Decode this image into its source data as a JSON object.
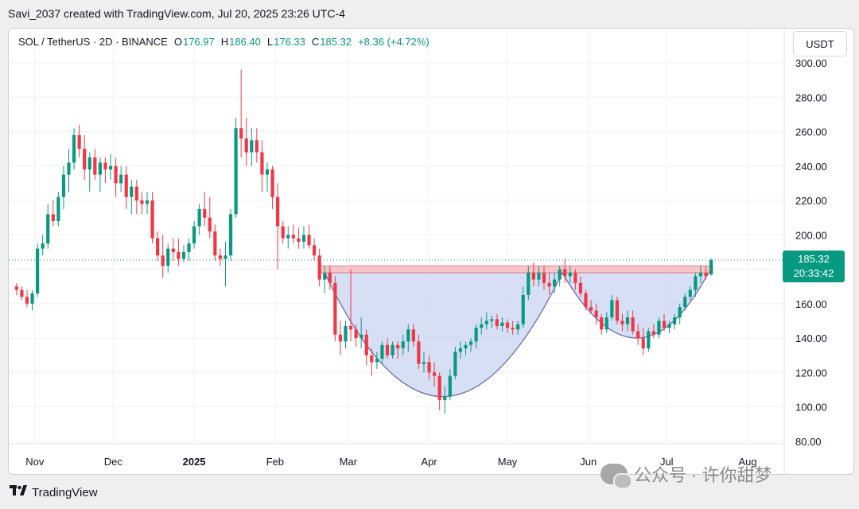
{
  "caption": "Savi_2037 created with TradingView.com, Jul 20, 2025 23:26 UTC-4",
  "legend": {
    "symbol": "SOL / TetherUS · 2D · BINANCE",
    "o_label": "O",
    "o_value": "176.97",
    "h_label": "H",
    "h_value": "186.40",
    "l_label": "L",
    "l_value": "176.33",
    "c_label": "C",
    "c_value": "185.32",
    "change": "+8.36 (+4.72%)"
  },
  "unit_label": "USDT",
  "last_price": {
    "value": "185.32",
    "countdown": "20:33:42"
  },
  "footer_logo": "TradingView",
  "watermark": "公众号 · 许你甜梦",
  "colors": {
    "up": "#089981",
    "down": "#f23645",
    "resistance_fill": "#f7c5c8",
    "cup_fill": "#c9d4f0",
    "cup_stroke": "#6f6aa8"
  },
  "chart_data": {
    "type": "candlestick",
    "timeframe": "2D",
    "y_ticks": [
      "300.00",
      "280.00",
      "260.00",
      "240.00",
      "220.00",
      "200.00",
      "180.00",
      "160.00",
      "140.00",
      "120.00",
      "100.00",
      "80.00"
    ],
    "ylim": [
      75,
      305
    ],
    "x_labels": [
      {
        "label": "Nov",
        "date": "2024-11-01"
      },
      {
        "label": "Dec",
        "date": "2024-12-01"
      },
      {
        "label": "2025",
        "date": "2025-01-01"
      },
      {
        "label": "Feb",
        "date": "2025-02-01"
      },
      {
        "label": "Mar",
        "date": "2025-03-01"
      },
      {
        "label": "Apr",
        "date": "2025-04-01"
      },
      {
        "label": "May",
        "date": "2025-05-01"
      },
      {
        "label": "Jun",
        "date": "2025-06-01"
      },
      {
        "label": "Jul",
        "date": "2025-07-01"
      },
      {
        "label": "Aug",
        "date": "2025-08-01"
      }
    ],
    "candles": [
      [
        "2024-10-25",
        170,
        172,
        165,
        168
      ],
      [
        "2024-10-27",
        168,
        170,
        162,
        164
      ],
      [
        "2024-10-29",
        164,
        168,
        158,
        160
      ],
      [
        "2024-10-31",
        160,
        168,
        156,
        166
      ],
      [
        "2024-11-02",
        166,
        195,
        164,
        192
      ],
      [
        "2024-11-04",
        192,
        200,
        188,
        195
      ],
      [
        "2024-11-06",
        195,
        218,
        192,
        212
      ],
      [
        "2024-11-08",
        212,
        220,
        205,
        208
      ],
      [
        "2024-11-10",
        208,
        225,
        205,
        222
      ],
      [
        "2024-11-12",
        222,
        240,
        215,
        235
      ],
      [
        "2024-11-14",
        235,
        250,
        225,
        242
      ],
      [
        "2024-11-16",
        242,
        262,
        238,
        258
      ],
      [
        "2024-11-18",
        258,
        264,
        245,
        250
      ],
      [
        "2024-11-20",
        250,
        258,
        232,
        238
      ],
      [
        "2024-11-22",
        238,
        248,
        225,
        245
      ],
      [
        "2024-11-24",
        245,
        250,
        232,
        235
      ],
      [
        "2024-11-26",
        235,
        245,
        225,
        242
      ],
      [
        "2024-11-28",
        242,
        245,
        230,
        238
      ],
      [
        "2024-11-30",
        238,
        247,
        232,
        240
      ],
      [
        "2024-12-02",
        240,
        245,
        222,
        230
      ],
      [
        "2024-12-04",
        230,
        240,
        225,
        235
      ],
      [
        "2024-12-06",
        235,
        240,
        215,
        222
      ],
      [
        "2024-12-08",
        222,
        232,
        212,
        228
      ],
      [
        "2024-12-10",
        228,
        232,
        212,
        220
      ],
      [
        "2024-12-12",
        220,
        225,
        212,
        218
      ],
      [
        "2024-12-14",
        218,
        225,
        212,
        220
      ],
      [
        "2024-12-16",
        220,
        225,
        195,
        198
      ],
      [
        "2024-12-18",
        198,
        202,
        185,
        188
      ],
      [
        "2024-12-20",
        188,
        200,
        175,
        182
      ],
      [
        "2024-12-22",
        182,
        195,
        178,
        192
      ],
      [
        "2024-12-24",
        192,
        198,
        185,
        190
      ],
      [
        "2024-12-26",
        190,
        198,
        182,
        186
      ],
      [
        "2024-12-28",
        186,
        194,
        184,
        190
      ],
      [
        "2024-12-30",
        190,
        198,
        185,
        195
      ],
      [
        "2025-01-01",
        195,
        208,
        192,
        205
      ],
      [
        "2025-01-03",
        205,
        218,
        200,
        215
      ],
      [
        "2025-01-05",
        215,
        225,
        205,
        210
      ],
      [
        "2025-01-07",
        210,
        222,
        198,
        202
      ],
      [
        "2025-01-09",
        202,
        206,
        185,
        188
      ],
      [
        "2025-01-11",
        188,
        192,
        182,
        186
      ],
      [
        "2025-01-13",
        186,
        196,
        170,
        188
      ],
      [
        "2025-01-15",
        188,
        215,
        185,
        212
      ],
      [
        "2025-01-17",
        212,
        268,
        210,
        262
      ],
      [
        "2025-01-19",
        262,
        296,
        245,
        256
      ],
      [
        "2025-01-21",
        256,
        268,
        240,
        248
      ],
      [
        "2025-01-23",
        248,
        262,
        240,
        255
      ],
      [
        "2025-01-25",
        255,
        262,
        242,
        248
      ],
      [
        "2025-01-27",
        248,
        255,
        225,
        235
      ],
      [
        "2025-01-29",
        235,
        242,
        225,
        238
      ],
      [
        "2025-01-31",
        238,
        240,
        215,
        222
      ],
      [
        "2025-02-02",
        222,
        230,
        180,
        205
      ],
      [
        "2025-02-04",
        205,
        208,
        195,
        198
      ],
      [
        "2025-02-06",
        198,
        205,
        192,
        200
      ],
      [
        "2025-02-08",
        200,
        206,
        195,
        198
      ],
      [
        "2025-02-10",
        198,
        204,
        192,
        196
      ],
      [
        "2025-02-12",
        196,
        205,
        192,
        200
      ],
      [
        "2025-02-14",
        200,
        206,
        192,
        194
      ],
      [
        "2025-02-16",
        194,
        198,
        185,
        188
      ],
      [
        "2025-02-18",
        188,
        192,
        170,
        174
      ],
      [
        "2025-02-20",
        174,
        182,
        166,
        178
      ],
      [
        "2025-02-22",
        178,
        182,
        168,
        172
      ],
      [
        "2025-02-24",
        172,
        176,
        138,
        142
      ],
      [
        "2025-02-26",
        142,
        150,
        130,
        138
      ],
      [
        "2025-02-28",
        138,
        150,
        134,
        147
      ],
      [
        "2025-03-02",
        147,
        180,
        138,
        145
      ],
      [
        "2025-03-04",
        145,
        148,
        135,
        140
      ],
      [
        "2025-03-06",
        140,
        152,
        134,
        142
      ],
      [
        "2025-03-08",
        142,
        145,
        124,
        130
      ],
      [
        "2025-03-10",
        130,
        134,
        118,
        126
      ],
      [
        "2025-03-12",
        126,
        132,
        122,
        128
      ],
      [
        "2025-03-14",
        128,
        138,
        125,
        136
      ],
      [
        "2025-03-16",
        136,
        140,
        128,
        130
      ],
      [
        "2025-03-18",
        130,
        138,
        128,
        136
      ],
      [
        "2025-03-20",
        136,
        138,
        128,
        134
      ],
      [
        "2025-03-22",
        134,
        142,
        130,
        138
      ],
      [
        "2025-03-24",
        138,
        148,
        132,
        145
      ],
      [
        "2025-03-26",
        145,
        148,
        135,
        138
      ],
      [
        "2025-03-28",
        138,
        142,
        122,
        125
      ],
      [
        "2025-03-30",
        125,
        132,
        120,
        126
      ],
      [
        "2025-04-01",
        126,
        130,
        116,
        120
      ],
      [
        "2025-04-03",
        120,
        126,
        112,
        118
      ],
      [
        "2025-04-05",
        118,
        120,
        98,
        104
      ],
      [
        "2025-04-07",
        104,
        112,
        96,
        106
      ],
      [
        "2025-04-09",
        106,
        122,
        104,
        118
      ],
      [
        "2025-04-11",
        118,
        135,
        116,
        132
      ],
      [
        "2025-04-13",
        132,
        138,
        128,
        134
      ],
      [
        "2025-04-15",
        134,
        138,
        130,
        136
      ],
      [
        "2025-04-17",
        136,
        140,
        132,
        138
      ],
      [
        "2025-04-19",
        138,
        148,
        134,
        146
      ],
      [
        "2025-04-21",
        146,
        152,
        142,
        148
      ],
      [
        "2025-04-23",
        148,
        155,
        145,
        150
      ],
      [
        "2025-04-25",
        150,
        153,
        146,
        151
      ],
      [
        "2025-04-27",
        151,
        154,
        145,
        147
      ],
      [
        "2025-04-29",
        147,
        152,
        144,
        149
      ],
      [
        "2025-05-01",
        149,
        151,
        143,
        146
      ],
      [
        "2025-05-03",
        146,
        150,
        142,
        145
      ],
      [
        "2025-05-05",
        145,
        150,
        142,
        148
      ],
      [
        "2025-05-07",
        148,
        170,
        146,
        165
      ],
      [
        "2025-05-09",
        165,
        182,
        162,
        178
      ],
      [
        "2025-05-11",
        178,
        184,
        170,
        174
      ],
      [
        "2025-05-13",
        174,
        182,
        170,
        178
      ],
      [
        "2025-05-15",
        178,
        182,
        168,
        172
      ],
      [
        "2025-05-17",
        172,
        178,
        165,
        170
      ],
      [
        "2025-05-19",
        170,
        178,
        166,
        174
      ],
      [
        "2025-05-21",
        174,
        182,
        170,
        180
      ],
      [
        "2025-05-23",
        180,
        186,
        172,
        176
      ],
      [
        "2025-05-25",
        176,
        182,
        172,
        178
      ],
      [
        "2025-05-27",
        178,
        180,
        168,
        172
      ],
      [
        "2025-05-29",
        172,
        176,
        164,
        166
      ],
      [
        "2025-05-31",
        166,
        168,
        156,
        158
      ],
      [
        "2025-06-02",
        158,
        162,
        154,
        156
      ],
      [
        "2025-06-04",
        156,
        160,
        148,
        152
      ],
      [
        "2025-06-06",
        152,
        154,
        142,
        145
      ],
      [
        "2025-06-08",
        145,
        155,
        143,
        152
      ],
      [
        "2025-06-10",
        152,
        165,
        150,
        162
      ],
      [
        "2025-06-12",
        162,
        164,
        148,
        150
      ],
      [
        "2025-06-14",
        150,
        154,
        144,
        148
      ],
      [
        "2025-06-16",
        148,
        156,
        144,
        152
      ],
      [
        "2025-06-18",
        152,
        156,
        142,
        144
      ],
      [
        "2025-06-20",
        144,
        148,
        136,
        140
      ],
      [
        "2025-06-22",
        140,
        146,
        130,
        134
      ],
      [
        "2025-06-24",
        134,
        146,
        132,
        144
      ],
      [
        "2025-06-26",
        144,
        148,
        140,
        142
      ],
      [
        "2025-06-28",
        142,
        152,
        140,
        150
      ],
      [
        "2025-06-30",
        150,
        154,
        144,
        146
      ],
      [
        "2025-07-02",
        146,
        150,
        143,
        148
      ],
      [
        "2025-07-04",
        148,
        154,
        145,
        152
      ],
      [
        "2025-07-06",
        152,
        160,
        148,
        158
      ],
      [
        "2025-07-08",
        158,
        166,
        156,
        164
      ],
      [
        "2025-07-10",
        164,
        170,
        162,
        168
      ],
      [
        "2025-07-12",
        168,
        178,
        164,
        176
      ],
      [
        "2025-07-14",
        176,
        182,
        172,
        178
      ],
      [
        "2025-07-16",
        178,
        182,
        174,
        176
      ],
      [
        "2025-07-18",
        176.97,
        186.4,
        176.33,
        185.32
      ]
    ],
    "resistance_band": [
      178,
      182
    ],
    "last_price": 185.32
  }
}
